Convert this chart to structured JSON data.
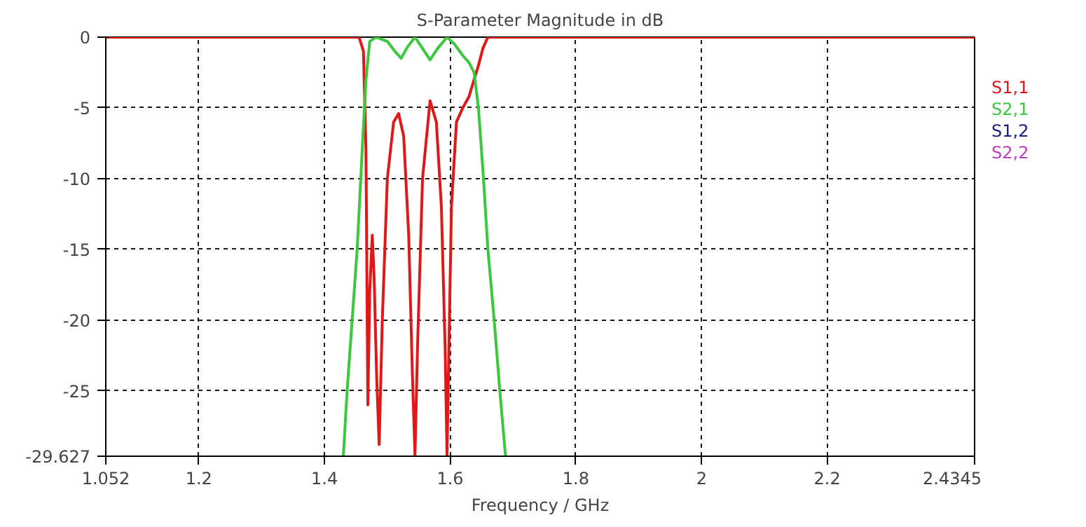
{
  "chart_data": {
    "type": "line",
    "title": "S-Parameter Magnitude in dB",
    "xlabel": "Frequency / GHz",
    "xlim": [
      1.052,
      2.4345
    ],
    "xticks": [
      1.052,
      1.2,
      1.4,
      1.6,
      1.8,
      2,
      2.2,
      2.4345
    ],
    "ylim": [
      -29.627,
      0
    ],
    "yticks": [
      0,
      -5,
      -10,
      -15,
      -20,
      -25,
      -29.627
    ],
    "grid": true,
    "line_style": "solid",
    "legend": "right",
    "series": [
      {
        "name": "S1,1",
        "color": "#e01818",
        "x": [
          1.052,
          1.2,
          1.4,
          1.455,
          1.462,
          1.466,
          1.469,
          1.472,
          1.476,
          1.479,
          1.483,
          1.487,
          1.492,
          1.5,
          1.51,
          1.518,
          1.526,
          1.534,
          1.54,
          1.544,
          1.548,
          1.556,
          1.568,
          1.578,
          1.586,
          1.592,
          1.595,
          1.598,
          1.602,
          1.61,
          1.62,
          1.63,
          1.638,
          1.645,
          1.652,
          1.66,
          1.68,
          1.8,
          2,
          2.2,
          2.4345
        ],
        "values": [
          0,
          0,
          0,
          0,
          -1,
          -8,
          -26,
          -18,
          -14,
          -17,
          -24,
          -28.8,
          -20,
          -10,
          -6,
          -5.4,
          -7,
          -14,
          -24,
          -29.6,
          -22,
          -10,
          -4.5,
          -6,
          -12,
          -22,
          -29.6,
          -22,
          -12,
          -6,
          -5,
          -4.2,
          -3,
          -2,
          -0.8,
          0,
          0,
          0,
          0,
          0,
          0
        ]
      },
      {
        "name": "S2,1",
        "color": "#3cc83c",
        "x": [
          1.43,
          1.436,
          1.444,
          1.452,
          1.46,
          1.466,
          1.472,
          1.482,
          1.5,
          1.512,
          1.522,
          1.532,
          1.544,
          1.556,
          1.568,
          1.58,
          1.595,
          1.607,
          1.62,
          1.63,
          1.638,
          1.645,
          1.653,
          1.66,
          1.67,
          1.679,
          1.688
        ],
        "values": [
          -29.6,
          -25,
          -20,
          -15,
          -8,
          -3,
          -0.3,
          0,
          -0.3,
          -1,
          -1.5,
          -0.7,
          0,
          -0.8,
          -1.6,
          -0.8,
          0,
          -0.5,
          -1.3,
          -1.8,
          -2.5,
          -5,
          -10,
          -15,
          -20,
          -25,
          -29.6
        ]
      },
      {
        "name": "S1,2",
        "color": "#1a1a80"
      },
      {
        "name": "S2,2",
        "color": "#c040c0"
      }
    ]
  }
}
